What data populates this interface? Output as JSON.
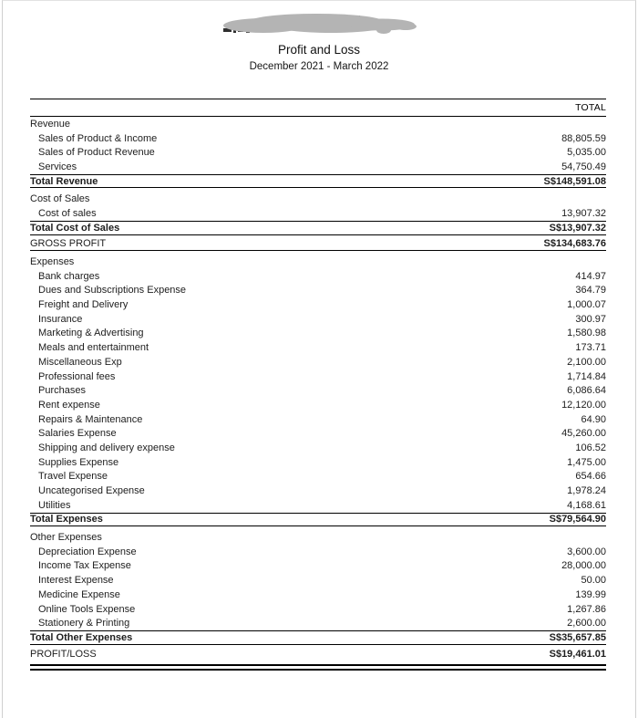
{
  "header": {
    "title": "Profit and Loss",
    "subtitle": "December 2021 - March 2022",
    "company_name_redacted": true
  },
  "report": {
    "column_header": "TOTAL",
    "currency_prefix": "S$",
    "rows": [
      {
        "type": "section",
        "label": "Revenue",
        "value": ""
      },
      {
        "type": "item",
        "label": "Sales of Product & Income",
        "value": "88,805.59"
      },
      {
        "type": "item",
        "label": "Sales of Product Revenue",
        "value": "5,035.00"
      },
      {
        "type": "item",
        "label": "Services",
        "value": "54,750.49"
      },
      {
        "type": "total",
        "label": "Total Revenue",
        "value": "S$148,591.08"
      },
      {
        "type": "section",
        "label": "Cost of Sales",
        "value": ""
      },
      {
        "type": "item",
        "label": "Cost of sales",
        "value": "13,907.32"
      },
      {
        "type": "total",
        "label": "Total Cost of Sales",
        "value": "S$13,907.32"
      },
      {
        "type": "summary",
        "label": "GROSS PROFIT",
        "value": "S$134,683.76"
      },
      {
        "type": "section",
        "label": "Expenses",
        "value": ""
      },
      {
        "type": "item",
        "label": "Bank charges",
        "value": "414.97"
      },
      {
        "type": "item",
        "label": "Dues and Subscriptions Expense",
        "value": "364.79"
      },
      {
        "type": "item",
        "label": "Freight and Delivery",
        "value": "1,000.07"
      },
      {
        "type": "item",
        "label": "Insurance",
        "value": "300.97"
      },
      {
        "type": "item",
        "label": "Marketing & Advertising",
        "value": "1,580.98"
      },
      {
        "type": "item",
        "label": "Meals and entertainment",
        "value": "173.71"
      },
      {
        "type": "item",
        "label": "Miscellaneous Exp",
        "value": "2,100.00"
      },
      {
        "type": "item",
        "label": "Professional fees",
        "value": "1,714.84"
      },
      {
        "type": "item",
        "label": "Purchases",
        "value": "6,086.64"
      },
      {
        "type": "item",
        "label": "Rent expense",
        "value": "12,120.00"
      },
      {
        "type": "item",
        "label": "Repairs & Maintenance",
        "value": "64.90"
      },
      {
        "type": "item",
        "label": "Salaries Expense",
        "value": "45,260.00"
      },
      {
        "type": "item",
        "label": "Shipping and delivery expense",
        "value": "106.52"
      },
      {
        "type": "item",
        "label": "Supplies Expense",
        "value": "1,475.00"
      },
      {
        "type": "item",
        "label": "Travel Expense",
        "value": "654.66"
      },
      {
        "type": "item",
        "label": "Uncategorised Expense",
        "value": "1,978.24"
      },
      {
        "type": "item",
        "label": "Utilities",
        "value": "4,168.61"
      },
      {
        "type": "total",
        "label": "Total Expenses",
        "value": "S$79,564.90"
      },
      {
        "type": "section",
        "label": "Other Expenses",
        "value": ""
      },
      {
        "type": "item",
        "label": "Depreciation Expense",
        "value": "3,600.00"
      },
      {
        "type": "item",
        "label": "Income Tax Expense",
        "value": "28,000.00"
      },
      {
        "type": "item",
        "label": "Interest Expense",
        "value": "50.00"
      },
      {
        "type": "item",
        "label": "Medicine Expense",
        "value": "139.99"
      },
      {
        "type": "item",
        "label": "Online Tools Expense",
        "value": "1,267.86"
      },
      {
        "type": "item",
        "label": "Stationery & Printing",
        "value": "2,600.00"
      },
      {
        "type": "total",
        "label": "Total Other Expenses",
        "value": "S$35,657.85"
      },
      {
        "type": "summary",
        "label": "PROFIT/LOSS",
        "value": "S$19,461.01",
        "final": true
      }
    ]
  },
  "colors": {
    "rule": "#000000",
    "text": "#1d1d1d",
    "redaction_gray": "#b4b4b4",
    "page_border": "#cfcfcf"
  }
}
